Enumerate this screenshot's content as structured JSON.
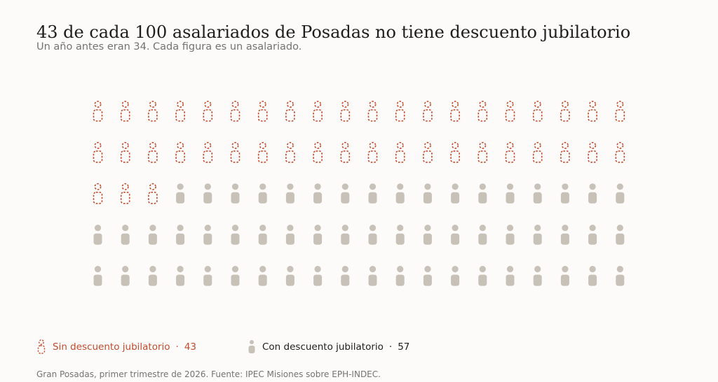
{
  "title": "43 de cada 100 asalariados de Posadas no tiene descuento jubilatorio",
  "subtitle": "Un año antes eran 34. Cada figura es un asalariado.",
  "source": "Gran Posadas, primer trimestre de 2026. Fuente: IPEC Misiones sobre EPH-INDEC.",
  "colors": {
    "sin": "#c44b2c",
    "con": "#c7c1b7"
  },
  "legend": {
    "sin": {
      "label": "Sin descuento jubilatorio",
      "value": "43",
      "separator": "·"
    },
    "con": {
      "label": "Con descuento jubilatorio",
      "value": "57",
      "separator": "·"
    }
  },
  "chart_data": {
    "type": "waffle",
    "total": 100,
    "columns": 20,
    "rows": 5,
    "series": [
      {
        "name": "Sin descuento jubilatorio",
        "value": 43,
        "style": "dashed-outline"
      },
      {
        "name": "Con descuento jubilatorio",
        "value": 57,
        "style": "solid"
      }
    ]
  }
}
